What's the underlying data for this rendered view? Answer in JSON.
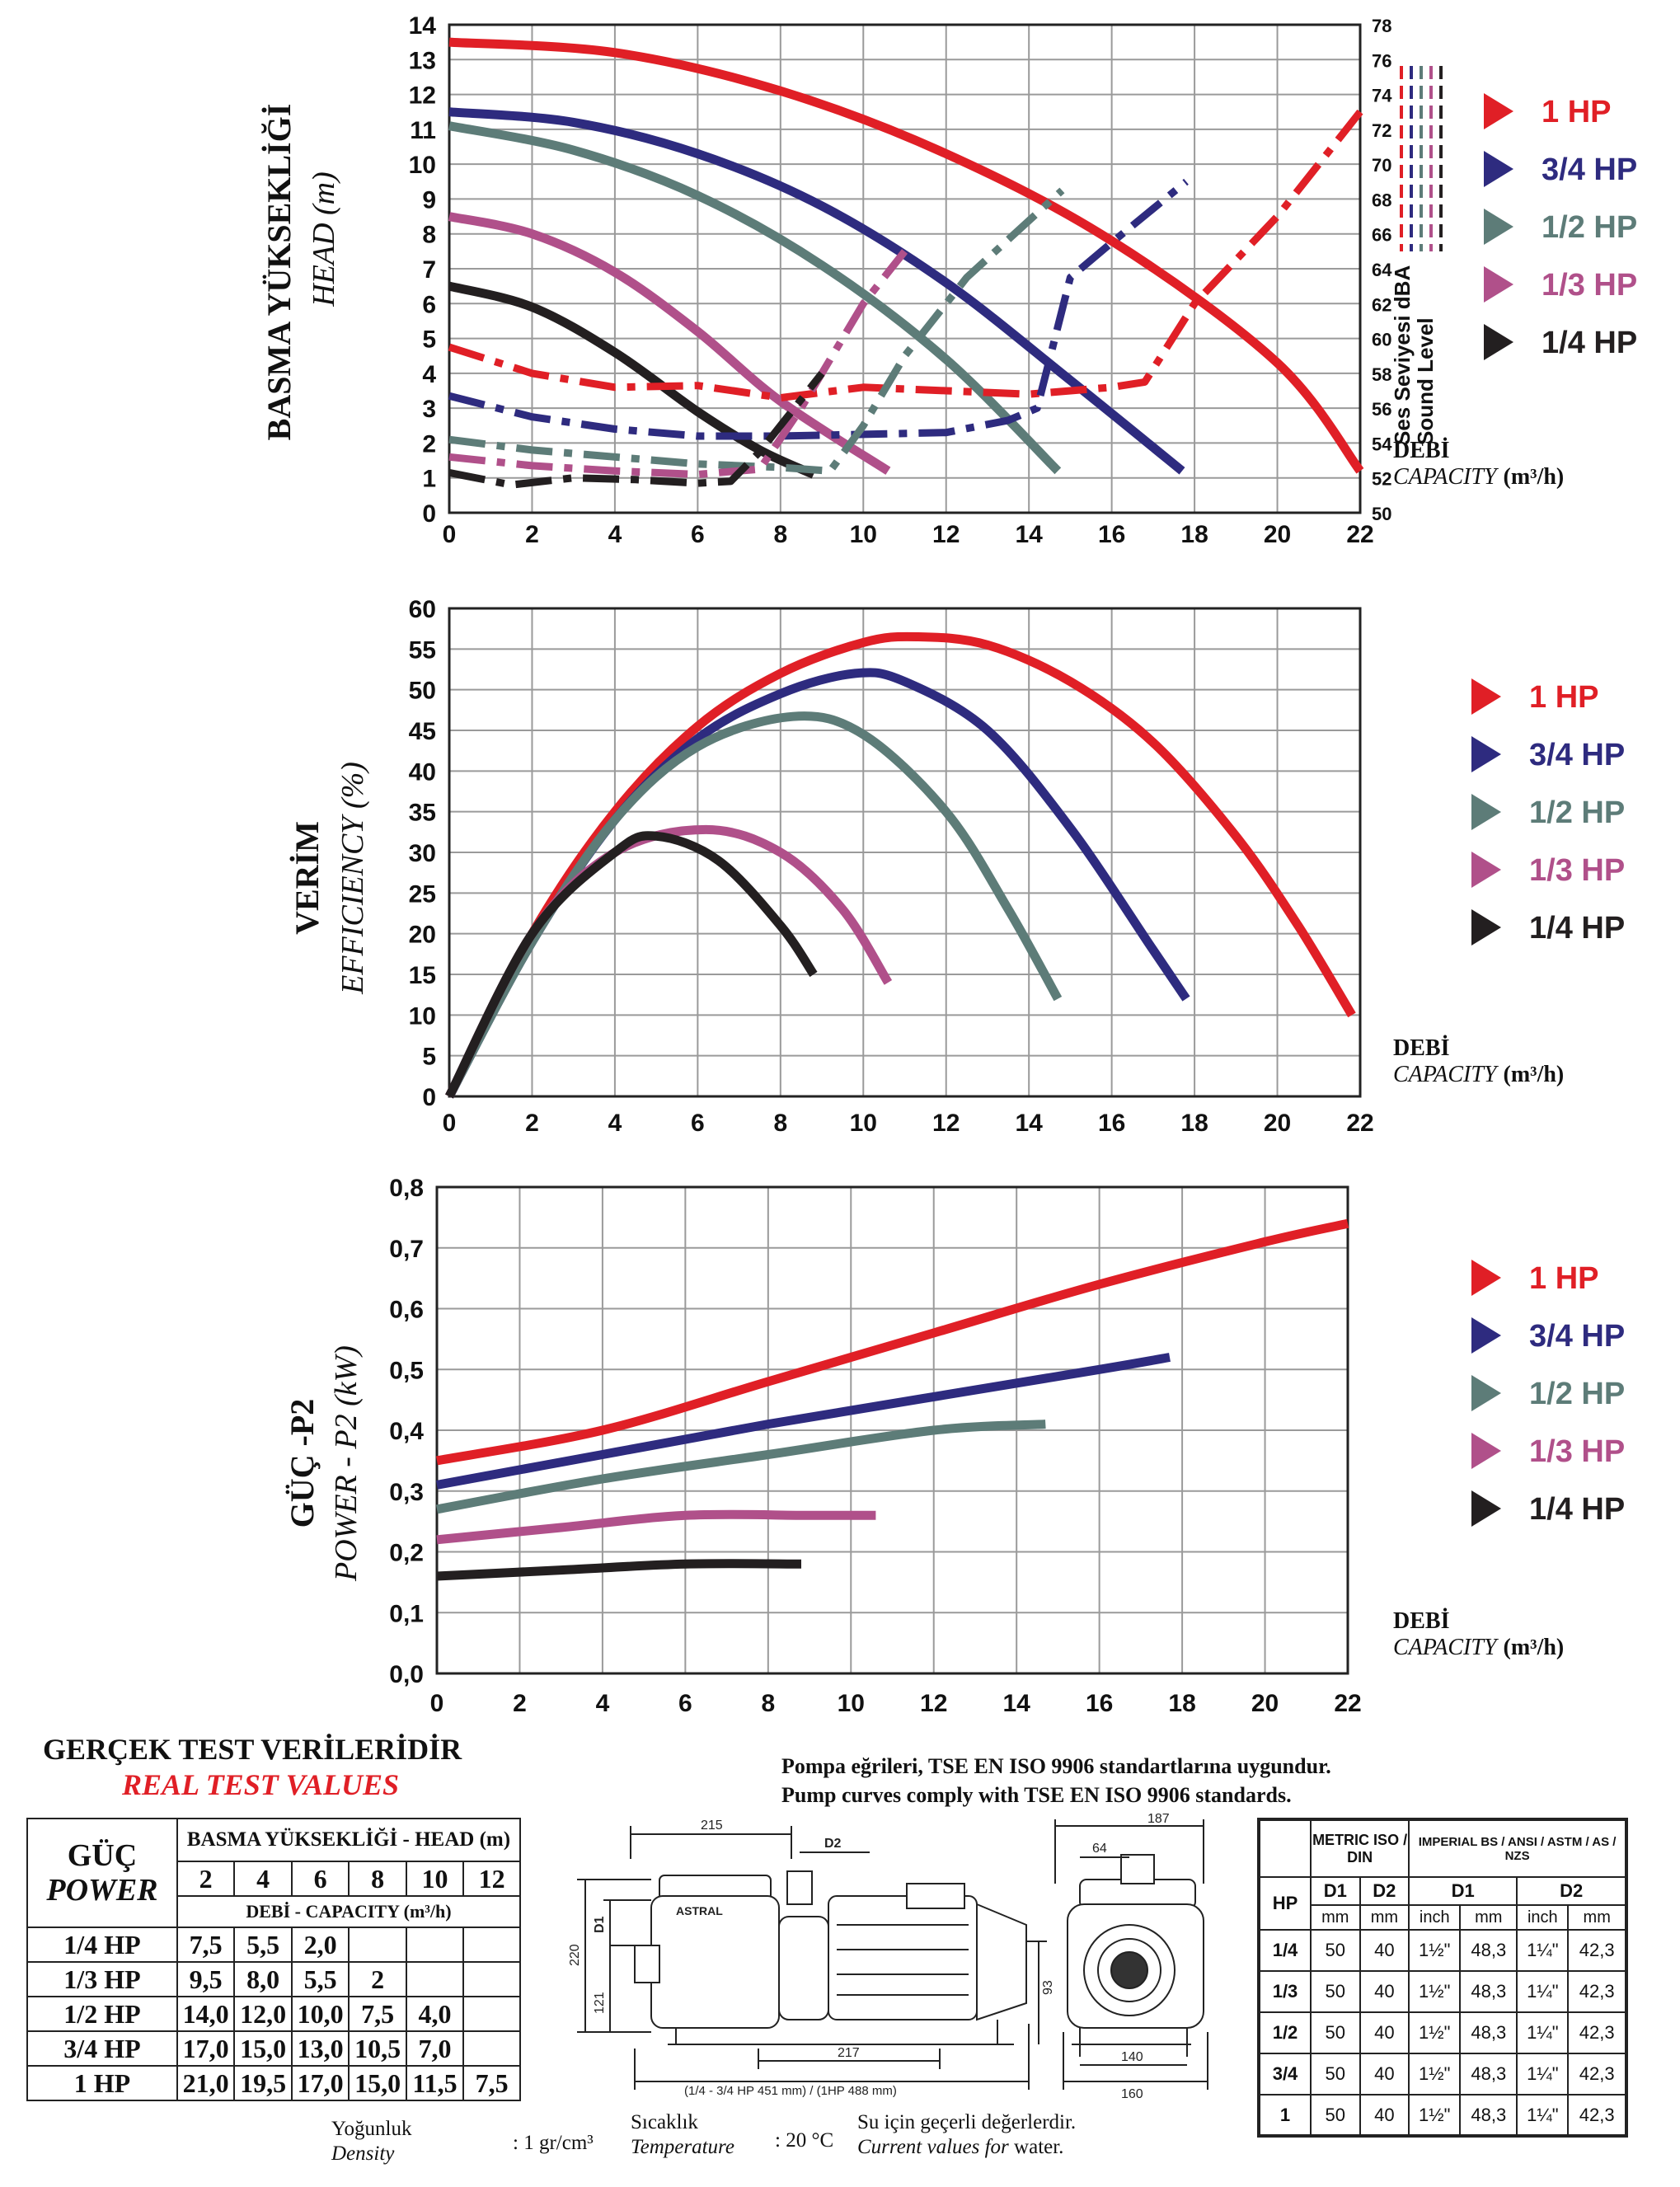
{
  "colors": {
    "1 HP": "#e01f26",
    "3/4 HP": "#2e2b7f",
    "1/2 HP": "#5d7c78",
    "1/3 HP": "#b0508a",
    "1/4 HP": "#231f20",
    "grid": "#9a9a9a",
    "axis": "#222222"
  },
  "legend": [
    {
      "label": "1 HP",
      "key": "1 HP"
    },
    {
      "label": "3/4 HP",
      "key": "3/4 HP"
    },
    {
      "label": "1/2 HP",
      "key": "1/2 HP"
    },
    {
      "label": "1/3 HP",
      "key": "1/3 HP"
    },
    {
      "label": "1/4 HP",
      "key": "1/4 HP"
    }
  ],
  "capacity_label": {
    "tr": "DEBİ",
    "en": "CAPACITY",
    "unit": "(m³/h)"
  },
  "chart_data": [
    {
      "type": "line",
      "title": "BASMA YÜKSEKLİĞİ",
      "subtitle": "HEAD (m)",
      "xlabel": "DEBİ CAPACITY (m³/h)",
      "ylabel": "BASMA YÜKSEKLİĞİ HEAD (m)",
      "y2label": "Ses Seviyesi dBA Sound Level",
      "xlim": [
        0,
        22
      ],
      "ylim": [
        0,
        14
      ],
      "y2lim": [
        50,
        78
      ],
      "xticks": [
        "0",
        "2",
        "4",
        "6",
        "8",
        "10",
        "12",
        "14",
        "16",
        "18",
        "20",
        "22"
      ],
      "yticks": [
        "0",
        "1",
        "2",
        "3",
        "4",
        "5",
        "6",
        "7",
        "8",
        "9",
        "10",
        "11",
        "12",
        "13",
        "14"
      ],
      "y2ticks": [
        "50",
        "52",
        "54",
        "56",
        "58",
        "60",
        "62",
        "64",
        "66",
        "68",
        "70",
        "72",
        "74",
        "76",
        "78"
      ],
      "series": [
        {
          "name": "1 HP",
          "kind": "head",
          "x": [
            0,
            4,
            8,
            12,
            16,
            20,
            22
          ],
          "y": [
            13.5,
            13.2,
            12.1,
            10.3,
            7.8,
            4.3,
            1.2
          ]
        },
        {
          "name": "3/4 HP",
          "kind": "head",
          "x": [
            0,
            3,
            6,
            9,
            12,
            15,
            17.7
          ],
          "y": [
            11.5,
            11.2,
            10.3,
            8.8,
            6.6,
            3.8,
            1.2
          ]
        },
        {
          "name": "1/2 HP",
          "kind": "head",
          "x": [
            0,
            3,
            6,
            9,
            12,
            14.7
          ],
          "y": [
            11.1,
            10.4,
            9.1,
            7.1,
            4.4,
            1.2
          ]
        },
        {
          "name": "1/3 HP",
          "kind": "head",
          "x": [
            0,
            2,
            4,
            6,
            8,
            10.6
          ],
          "y": [
            8.5,
            8.0,
            6.9,
            5.2,
            3.2,
            1.2
          ]
        },
        {
          "name": "1/4 HP",
          "kind": "head",
          "x": [
            0,
            2,
            4,
            6,
            7.5,
            8.8
          ],
          "y": [
            6.5,
            5.9,
            4.6,
            2.9,
            1.8,
            1.1
          ]
        },
        {
          "name": "1 HP",
          "kind": "sound",
          "x": [
            0,
            2,
            4,
            6,
            8,
            10,
            12,
            14,
            16,
            16.8,
            18,
            20,
            22
          ],
          "y": [
            59.5,
            58,
            57.2,
            57.3,
            56.6,
            57.2,
            57,
            56.8,
            57.2,
            57.5,
            62,
            67,
            73
          ]
        },
        {
          "name": "3/4 HP",
          "kind": "sound",
          "x": [
            0,
            2,
            4,
            6,
            8,
            10,
            12,
            13.5,
            14.2,
            15,
            16,
            17.8
          ],
          "y": [
            56.7,
            55.5,
            54.8,
            54.4,
            54.4,
            54.5,
            54.6,
            55.3,
            56,
            63.5,
            65.5,
            69
          ]
        },
        {
          "name": "1/2 HP",
          "kind": "sound",
          "x": [
            0,
            2,
            4,
            6,
            8,
            9.2,
            10,
            11,
            12.5,
            14.8
          ],
          "y": [
            54.2,
            53.6,
            53.2,
            52.8,
            52.6,
            52.4,
            55,
            59,
            63.5,
            68.5
          ]
        },
        {
          "name": "1/3 HP",
          "kind": "sound",
          "x": [
            0,
            2,
            4,
            6,
            7.5,
            8.5,
            10,
            11
          ],
          "y": [
            53.2,
            52.7,
            52.4,
            52.2,
            52.5,
            56,
            62,
            65
          ]
        },
        {
          "name": "1/4 HP",
          "kind": "sound",
          "x": [
            0,
            1.5,
            3,
            4.5,
            6,
            6.8,
            7.5,
            9
          ],
          "y": [
            52.3,
            51.6,
            52,
            51.9,
            51.7,
            51.8,
            53.5,
            58
          ]
        }
      ]
    },
    {
      "type": "line",
      "title": "VERİM",
      "subtitle": "EFFICIENCY (%)",
      "xlabel": "DEBİ CAPACITY (m³/h)",
      "ylabel": "VERİM EFFICIENCY (%)",
      "xlim": [
        0,
        22
      ],
      "ylim": [
        0,
        60
      ],
      "xticks": [
        "0",
        "2",
        "4",
        "6",
        "8",
        "10",
        "12",
        "14",
        "16",
        "18",
        "20",
        "22"
      ],
      "yticks": [
        "0",
        "5",
        "10",
        "15",
        "20",
        "25",
        "30",
        "35",
        "40",
        "45",
        "50",
        "55",
        "60"
      ],
      "series": [
        {
          "name": "1 HP",
          "x": [
            0,
            2,
            4,
            6,
            8,
            10,
            11.3,
            13,
            15,
            17,
            19,
            20.5,
            21.8
          ],
          "y": [
            0,
            20,
            35,
            45.5,
            52,
            55.8,
            56.5,
            55.5,
            51,
            43.5,
            32,
            21,
            10
          ]
        },
        {
          "name": "3/4 HP",
          "x": [
            0,
            2,
            4,
            6,
            8,
            9.8,
            11,
            13,
            15,
            17,
            17.8
          ],
          "y": [
            0,
            19,
            34,
            44,
            49.5,
            52,
            51,
            45,
            33,
            18,
            12
          ]
        },
        {
          "name": "1/2 HP",
          "x": [
            0,
            2,
            4,
            6,
            8.3,
            10,
            12,
            13.5,
            14.7
          ],
          "y": [
            0,
            19,
            34,
            43,
            46.7,
            44.5,
            35,
            23,
            12
          ]
        },
        {
          "name": "1/3 HP",
          "x": [
            0,
            2,
            4,
            6.2,
            8,
            9.5,
            10.6
          ],
          "y": [
            0,
            20,
            30,
            32.8,
            30,
            23,
            14
          ]
        },
        {
          "name": "1/4 HP",
          "x": [
            0,
            2,
            4,
            5,
            6.5,
            8,
            8.8
          ],
          "y": [
            0,
            20,
            30,
            32,
            29,
            21,
            15
          ]
        }
      ]
    },
    {
      "type": "line",
      "title": "GÜÇ -P2",
      "subtitle": "POWER - P2 (kW)",
      "xlabel": "DEBİ CAPACITY (m³/h)",
      "ylabel": "GÜÇ -P2 POWER - P2 (kW)",
      "xlim": [
        0,
        22
      ],
      "ylim": [
        0,
        0.8
      ],
      "xticks": [
        "0",
        "2",
        "4",
        "6",
        "8",
        "10",
        "12",
        "14",
        "16",
        "18",
        "20",
        "22"
      ],
      "yticks": [
        "0,0",
        "0,1",
        "0,2",
        "0,3",
        "0,4",
        "0,5",
        "0,6",
        "0,7",
        "0,8"
      ],
      "series": [
        {
          "name": "1 HP",
          "x": [
            0,
            4,
            8,
            12,
            16,
            20,
            22
          ],
          "y": [
            0.35,
            0.4,
            0.48,
            0.56,
            0.64,
            0.71,
            0.74
          ]
        },
        {
          "name": "3/4 HP",
          "x": [
            0,
            4,
            8,
            12,
            16,
            17.7
          ],
          "y": [
            0.31,
            0.36,
            0.41,
            0.455,
            0.5,
            0.52
          ]
        },
        {
          "name": "1/2 HP",
          "x": [
            0,
            4,
            8,
            12,
            14.7
          ],
          "y": [
            0.27,
            0.32,
            0.36,
            0.4,
            0.41
          ]
        },
        {
          "name": "1/3 HP",
          "x": [
            0,
            3,
            6,
            9,
            10.6
          ],
          "y": [
            0.22,
            0.24,
            0.26,
            0.26,
            0.26
          ]
        },
        {
          "name": "1/4 HP",
          "x": [
            0,
            3,
            6,
            8.8
          ],
          "y": [
            0.16,
            0.17,
            0.18,
            0.18
          ]
        }
      ]
    }
  ],
  "real_test": {
    "title": "GERÇEK TEST VERİLERİDİR",
    "subtitle": "REAL TEST VALUES",
    "power_tr": "GÜÇ",
    "power_en": "POWER",
    "head_header": "BASMA YÜKSEKLİĞİ - HEAD (m)",
    "heads": [
      "2",
      "4",
      "6",
      "8",
      "10",
      "12"
    ],
    "capacity_header": "DEBİ - CAPACITY (m³/h)",
    "rows": [
      {
        "label": "1/4 HP",
        "values": [
          "7,5",
          "5,5",
          "2,0",
          "",
          "",
          ""
        ]
      },
      {
        "label": "1/3 HP",
        "values": [
          "9,5",
          "8,0",
          "5,5",
          "2",
          "",
          ""
        ]
      },
      {
        "label": "1/2 HP",
        "values": [
          "14,0",
          "12,0",
          "10,0",
          "7,5",
          "4,0",
          ""
        ]
      },
      {
        "label": "3/4 HP",
        "values": [
          "17,0",
          "15,0",
          "13,0",
          "10,5",
          "7,0",
          ""
        ]
      },
      {
        "label": "1 HP",
        "values": [
          "21,0",
          "19,5",
          "17,0",
          "15,0",
          "11,5",
          "7,5"
        ]
      }
    ]
  },
  "standards": {
    "tr": "Pompa eğrileri, TSE EN ISO 9906 standartlarına uygundur.",
    "en": "Pump curves comply with TSE EN ISO 9906 standards."
  },
  "drawing": {
    "dims": [
      "215",
      "D2",
      "D1",
      "220",
      "121",
      "93",
      "217",
      "(1/4 - 3/4 HP  451 mm) / (1HP 488 mm)",
      "187",
      "64",
      "140",
      "160"
    ],
    "brand": "ASTRAL"
  },
  "spec_table": {
    "metric": "METRIC ISO / DIN",
    "imperial": "IMPERIAL BS / ANSI / ASTM / AS /  NZS",
    "hp": "HP",
    "d1": "D1",
    "d2": "D2",
    "mm": "mm",
    "inch": "inch",
    "rows": [
      {
        "hp": "1/4",
        "d1mm": "50",
        "d2mm": "40",
        "d1in": "1½\"",
        "d1in_mm": "48,3",
        "d2in": "1¼\"",
        "d2in_mm": "42,3"
      },
      {
        "hp": "1/3",
        "d1mm": "50",
        "d2mm": "40",
        "d1in": "1½\"",
        "d1in_mm": "48,3",
        "d2in": "1¼\"",
        "d2in_mm": "42,3"
      },
      {
        "hp": "1/2",
        "d1mm": "50",
        "d2mm": "40",
        "d1in": "1½\"",
        "d1in_mm": "48,3",
        "d2in": "1¼\"",
        "d2in_mm": "42,3"
      },
      {
        "hp": "3/4",
        "d1mm": "50",
        "d2mm": "40",
        "d1in": "1½\"",
        "d1in_mm": "48,3",
        "d2in": "1¼\"",
        "d2in_mm": "42,3"
      },
      {
        "hp": "1",
        "d1mm": "50",
        "d2mm": "40",
        "d1in": "1½\"",
        "d1in_mm": "48,3",
        "d2in": "1¼\"",
        "d2in_mm": "42,3"
      }
    ]
  },
  "footer": {
    "density_tr": "Yoğunluk",
    "density_en": "Density",
    "density_val": ": 1 gr/cm³",
    "temp_tr": "Sıcaklık",
    "temp_en": "Temperature",
    "temp_val": ": 20 °C",
    "note_tr": "Su için geçerli değerlerdir.",
    "note_en_a": "Current values for",
    "note_en_b": "water."
  }
}
